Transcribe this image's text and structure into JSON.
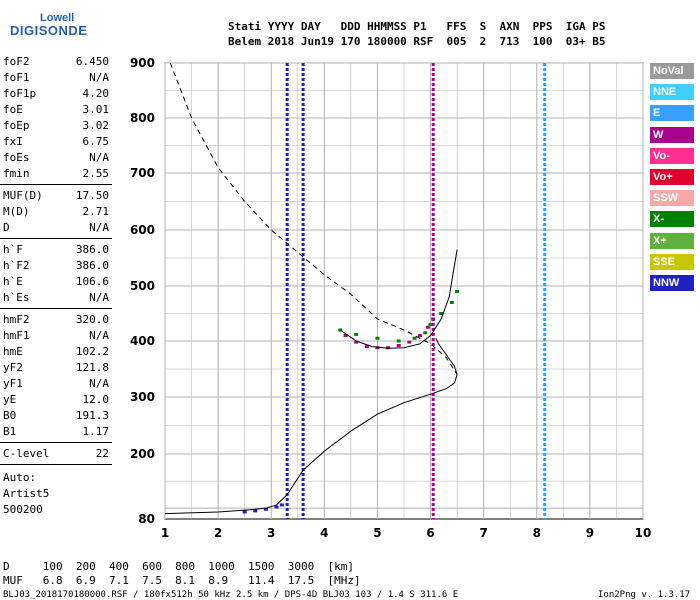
{
  "logo": {
    "brand_small": "Lowell",
    "brand_main": "DIGISONDE"
  },
  "header": {
    "line1": "Stati YYYY DAY   DDD HHMMSS P1   FFS  S  AXN  PPS  IGA PS",
    "line2": "Belem 2018 Jun19 170 180000 RSF  005  2  713  100  03+ B5"
  },
  "params": {
    "group1": [
      {
        "k": "foF2",
        "v": "6.450"
      },
      {
        "k": "foF1",
        "v": "N/A"
      },
      {
        "k": "foF1p",
        "v": "4.20"
      },
      {
        "k": "foE",
        "v": "3.01"
      },
      {
        "k": "foEp",
        "v": "3.02"
      },
      {
        "k": "fxI",
        "v": "6.75"
      },
      {
        "k": "foEs",
        "v": "N/A"
      },
      {
        "k": "fmin",
        "v": "2.55"
      }
    ],
    "group2": [
      {
        "k": "MUF(D)",
        "v": "17.50"
      },
      {
        "k": "M(D)",
        "v": "2.71"
      },
      {
        "k": "D",
        "v": "N/A"
      }
    ],
    "group3": [
      {
        "k": "h`F",
        "v": "386.0"
      },
      {
        "k": "h`F2",
        "v": "386.0"
      },
      {
        "k": "h`E",
        "v": "106.6"
      },
      {
        "k": "h`Es",
        "v": "N/A"
      }
    ],
    "group4": [
      {
        "k": "hmF2",
        "v": "320.0"
      },
      {
        "k": "hmF1",
        "v": "N/A"
      },
      {
        "k": "hmE",
        "v": "102.2"
      },
      {
        "k": "yF2",
        "v": "121.8"
      },
      {
        "k": "yF1",
        "v": "N/A"
      },
      {
        "k": "yE",
        "v": "12.0"
      },
      {
        "k": "B0",
        "v": "191.3"
      },
      {
        "k": "B1",
        "v": "1.17"
      }
    ],
    "group5": [
      {
        "k": "C-level",
        "v": "22"
      }
    ],
    "auto": [
      "Auto:",
      "Artist5",
      "500200"
    ]
  },
  "legend": [
    {
      "label": "NoVal",
      "color": "#9a9a9a"
    },
    {
      "label": "NNE",
      "color": "#40d0ff"
    },
    {
      "label": "E",
      "color": "#3aa0ff"
    },
    {
      "label": "W",
      "color": "#aa0090"
    },
    {
      "label": "Vo-",
      "color": "#ff3090"
    },
    {
      "label": "Vo+",
      "color": "#e00030"
    },
    {
      "label": "SSW",
      "color": "#f8a8a8"
    },
    {
      "label": "X-",
      "color": "#008000"
    },
    {
      "label": "X+",
      "color": "#60b040"
    },
    {
      "label": "SSE",
      "color": "#c8c800"
    },
    {
      "label": "NNW",
      "color": "#2020c0"
    }
  ],
  "footer": {
    "d_row": "D     100  200  400  600  800  1000  1500  3000  [km]",
    "muf_row": "MUF   6.8  6.9  7.1  7.5  8.1  8.9   11.4  17.5  [MHz]",
    "file_row": "BLJ03_2018170180000.RSF / 180fx512h 50 kHz 2.5 km / DPS-4D BLJ03 103 / 1.4 S 311.6 E",
    "version": "Ion2Png v. 1.3.17"
  },
  "chart_data": {
    "type": "scatter",
    "xlim": [
      1,
      10
    ],
    "ylim": [
      80,
      900
    ],
    "x_ticks": [
      "1",
      "2",
      "3",
      "4",
      "5",
      "6",
      "7",
      "8",
      "9",
      "10"
    ],
    "y_ticks": [
      "80",
      "200",
      "300",
      "400",
      "500",
      "600",
      "700",
      "800",
      "900"
    ],
    "grid": true,
    "series": [
      {
        "name": "electron density profile",
        "style": "solid",
        "x": [
          1.0,
          2.0,
          2.6,
          2.9,
          3.1,
          3.3,
          3.6,
          4.0,
          4.5,
          5.0,
          5.5,
          6.0,
          6.3,
          6.45,
          6.5,
          6.45,
          6.3,
          6.15,
          6.1
        ],
        "y": [
          90,
          93,
          97,
          100,
          106,
          125,
          170,
          205,
          240,
          270,
          290,
          305,
          315,
          325,
          340,
          355,
          375,
          395,
          405
        ]
      },
      {
        "name": "virtual height trace",
        "style": "solid",
        "x": [
          4.3,
          4.6,
          4.9,
          5.2,
          5.5,
          5.8,
          6.0,
          6.2,
          6.35,
          6.42,
          6.5
        ],
        "y": [
          420,
          400,
          390,
          387,
          388,
          395,
          410,
          440,
          480,
          520,
          565
        ]
      },
      {
        "name": "MUF distance curve",
        "style": "dashed",
        "x": [
          1.1,
          1.5,
          2.0,
          2.5,
          3.0,
          3.5,
          4.0,
          4.5,
          5.0,
          5.5,
          6.0,
          6.3,
          6.5
        ],
        "y": [
          900,
          800,
          710,
          650,
          600,
          560,
          520,
          485,
          440,
          420,
          395,
          370,
          340
        ]
      }
    ],
    "echo_columns": [
      {
        "x": 3.3,
        "y0": 80,
        "y1": 900,
        "color": "#2020c0"
      },
      {
        "x": 3.6,
        "y0": 80,
        "y1": 900,
        "color": "#2020c0"
      },
      {
        "x": 6.05,
        "y0": 80,
        "y1": 900,
        "color": "#aa0090"
      },
      {
        "x": 8.15,
        "y0": 80,
        "y1": 900,
        "color": "#3aa0ff"
      }
    ],
    "o_trace": {
      "color": "#aa0090",
      "x": [
        4.4,
        4.6,
        4.8,
        5.0,
        5.2,
        5.4,
        5.6,
        5.8,
        5.95,
        6.05
      ],
      "y": [
        410,
        398,
        390,
        388,
        388,
        392,
        398,
        410,
        425,
        440
      ]
    },
    "x_trace": {
      "color": "#008000",
      "x": [
        4.3,
        4.6,
        5.0,
        5.4,
        5.7,
        5.9,
        6.0,
        6.2,
        6.4,
        6.5
      ],
      "y": [
        420,
        412,
        405,
        400,
        405,
        415,
        430,
        450,
        470,
        490
      ]
    },
    "e_trace": {
      "color": "#2020c0",
      "x": [
        2.5,
        2.7,
        2.9,
        3.1,
        3.2
      ],
      "y": [
        93,
        95,
        98,
        102,
        106
      ]
    }
  }
}
